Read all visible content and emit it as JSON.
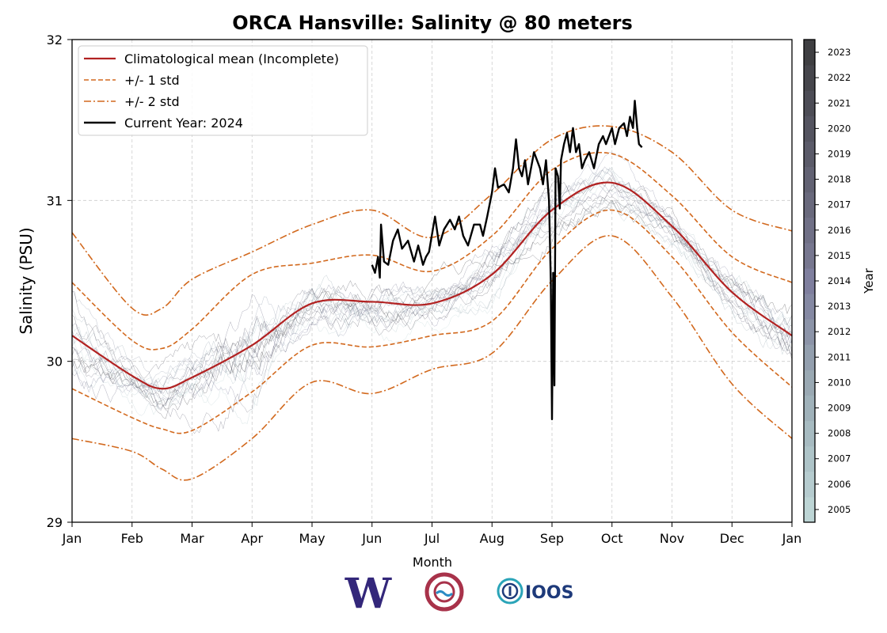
{
  "chart_data": {
    "type": "line",
    "title": "ORCA Hansville: Salinity @ 80 meters",
    "xlabel": "Month",
    "ylabel": "Salinity (PSU)",
    "xlim": [
      0,
      12
    ],
    "ylim": [
      29,
      32
    ],
    "grid": true,
    "x_ticks": [
      "Jan",
      "Feb",
      "Mar",
      "Apr",
      "May",
      "Jun",
      "Jul",
      "Aug",
      "Sep",
      "Oct",
      "Nov",
      "Dec",
      "Jan"
    ],
    "y_ticks": [
      29,
      30,
      31,
      32
    ],
    "legend_position": "top-left",
    "legend": [
      {
        "label": "Climatological mean (Incomplete)",
        "style": "solid",
        "color": "#b22222"
      },
      {
        "label": "+/- 1 std",
        "style": "dashed",
        "color": "#d2691e"
      },
      {
        "label": "+/- 2 std",
        "style": "dashdot",
        "color": "#d2691e"
      },
      {
        "label": "Current Year: 2024",
        "style": "solid",
        "color": "#000000"
      }
    ],
    "month_x": [
      0,
      1,
      1.5,
      2,
      3,
      4,
      5,
      6,
      7,
      8,
      9,
      10,
      11,
      12
    ],
    "series": [
      {
        "name": "Climatological mean (Incomplete)",
        "values": [
          30.16,
          29.91,
          29.83,
          29.9,
          30.1,
          30.36,
          30.37,
          30.36,
          30.54,
          30.94,
          31.11,
          30.84,
          30.43,
          30.16
        ]
      },
      {
        "name": "+1 std",
        "values": [
          30.49,
          30.13,
          30.08,
          30.2,
          30.54,
          30.61,
          30.66,
          30.56,
          30.78,
          31.19,
          31.29,
          31.03,
          30.65,
          30.49
        ]
      },
      {
        "name": "-1 std",
        "values": [
          29.83,
          29.65,
          29.58,
          29.57,
          29.81,
          30.1,
          30.09,
          30.16,
          30.25,
          30.7,
          30.94,
          30.65,
          30.18,
          29.84
        ]
      },
      {
        "name": "+2 std",
        "values": [
          30.8,
          30.33,
          30.33,
          30.51,
          30.68,
          30.85,
          30.94,
          30.77,
          31.04,
          31.38,
          31.46,
          31.3,
          30.94,
          30.81
        ]
      },
      {
        "name": "-2 std",
        "values": [
          29.52,
          29.44,
          29.33,
          29.27,
          29.52,
          29.87,
          29.8,
          29.95,
          30.05,
          30.5,
          30.78,
          30.4,
          29.86,
          29.52
        ]
      }
    ],
    "current_year": {
      "name": "Current Year: 2024",
      "points": [
        [
          5.0,
          30.6
        ],
        [
          5.05,
          30.55
        ],
        [
          5.1,
          30.65
        ],
        [
          5.13,
          30.52
        ],
        [
          5.15,
          30.85
        ],
        [
          5.2,
          30.62
        ],
        [
          5.27,
          30.6
        ],
        [
          5.35,
          30.75
        ],
        [
          5.43,
          30.82
        ],
        [
          5.5,
          30.7
        ],
        [
          5.6,
          30.75
        ],
        [
          5.7,
          30.62
        ],
        [
          5.77,
          30.72
        ],
        [
          5.85,
          30.6
        ],
        [
          5.9,
          30.65
        ],
        [
          5.95,
          30.68
        ],
        [
          6.05,
          30.9
        ],
        [
          6.12,
          30.72
        ],
        [
          6.2,
          30.82
        ],
        [
          6.3,
          30.88
        ],
        [
          6.38,
          30.82
        ],
        [
          6.45,
          30.9
        ],
        [
          6.52,
          30.78
        ],
        [
          6.6,
          30.72
        ],
        [
          6.7,
          30.85
        ],
        [
          6.8,
          30.85
        ],
        [
          6.85,
          30.78
        ],
        [
          6.92,
          30.9
        ],
        [
          7.0,
          31.05
        ],
        [
          7.05,
          31.2
        ],
        [
          7.1,
          31.08
        ],
        [
          7.2,
          31.1
        ],
        [
          7.28,
          31.05
        ],
        [
          7.35,
          31.2
        ],
        [
          7.4,
          31.38
        ],
        [
          7.45,
          31.2
        ],
        [
          7.5,
          31.15
        ],
        [
          7.55,
          31.25
        ],
        [
          7.6,
          31.1
        ],
        [
          7.7,
          31.3
        ],
        [
          7.8,
          31.2
        ],
        [
          7.85,
          31.1
        ],
        [
          7.9,
          31.25
        ],
        [
          7.95,
          31.0
        ],
        [
          7.98,
          30.5
        ],
        [
          8.0,
          29.64
        ],
        [
          8.02,
          30.55
        ],
        [
          8.04,
          29.85
        ],
        [
          8.06,
          31.2
        ],
        [
          8.1,
          31.15
        ],
        [
          8.13,
          30.95
        ],
        [
          8.15,
          31.25
        ],
        [
          8.2,
          31.35
        ],
        [
          8.25,
          31.42
        ],
        [
          8.3,
          31.3
        ],
        [
          8.35,
          31.45
        ],
        [
          8.4,
          31.3
        ],
        [
          8.45,
          31.35
        ],
        [
          8.5,
          31.2
        ],
        [
          8.55,
          31.25
        ],
        [
          8.62,
          31.3
        ],
        [
          8.7,
          31.2
        ],
        [
          8.78,
          31.35
        ],
        [
          8.85,
          31.4
        ],
        [
          8.9,
          31.35
        ],
        [
          9.0,
          31.45
        ],
        [
          9.05,
          31.35
        ],
        [
          9.12,
          31.45
        ],
        [
          9.2,
          31.48
        ],
        [
          9.25,
          31.4
        ],
        [
          9.3,
          31.52
        ],
        [
          9.35,
          31.45
        ],
        [
          9.38,
          31.62
        ],
        [
          9.42,
          31.45
        ],
        [
          9.45,
          31.35
        ],
        [
          9.5,
          31.33
        ]
      ]
    },
    "colorbar": {
      "label": "Year",
      "ticks": [
        "2005",
        "2006",
        "2007",
        "2008",
        "2009",
        "2010",
        "2011",
        "2012",
        "2013",
        "2014",
        "2015",
        "2016",
        "2017",
        "2018",
        "2019",
        "2020",
        "2021",
        "2022",
        "2023"
      ],
      "colors": [
        "#bdd5d5",
        "#b6cccf",
        "#aec4c8",
        "#a7bbc1",
        "#a0b2ba",
        "#9aa9b3",
        "#939fae",
        "#8c94a8",
        "#8589a3",
        "#7f7f9e",
        "#77778f",
        "#707086",
        "#69697c",
        "#626273",
        "#5b5b69",
        "#545460",
        "#4d4d56",
        "#46464c",
        "#3f3f42"
      ]
    },
    "logos": [
      "W",
      "IOOS"
    ]
  }
}
